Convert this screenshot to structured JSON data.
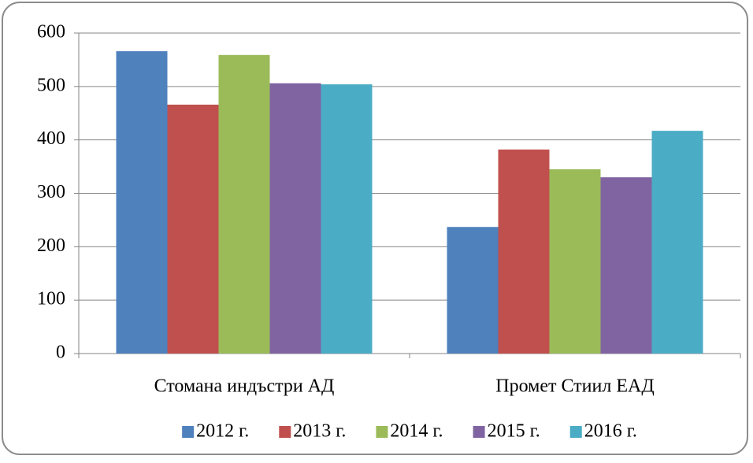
{
  "chart_data": {
    "type": "bar",
    "categories": [
      "Стомана индъстри АД",
      "Промет Стиил ЕАД"
    ],
    "series": [
      {
        "name": "2012 г.",
        "color": "#4f81bd",
        "values": [
          566,
          237
        ]
      },
      {
        "name": "2013 г.",
        "color": "#c0504d",
        "values": [
          466,
          382
        ]
      },
      {
        "name": "2014 г.",
        "color": "#9bbb59",
        "values": [
          559,
          345
        ]
      },
      {
        "name": "2015 г.",
        "color": "#8064a2",
        "values": [
          506,
          330
        ]
      },
      {
        "name": "2016 г.",
        "color": "#4bacc6",
        "values": [
          504,
          417
        ]
      }
    ],
    "ylim": [
      0,
      600
    ],
    "yticks": [
      0,
      100,
      200,
      300,
      400,
      500,
      600
    ],
    "grid": true,
    "legend": "bottom"
  }
}
